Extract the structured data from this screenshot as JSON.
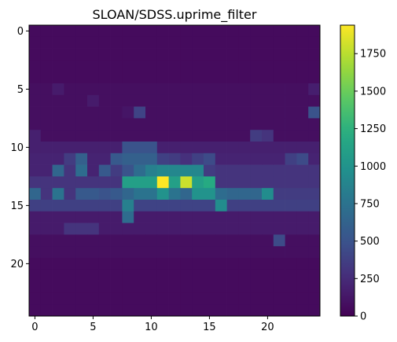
{
  "chart_data": {
    "type": "heatmap",
    "title": "SLOAN/SDSS.uprime_filter",
    "colormap": "viridis",
    "vmin": 0,
    "vmax": 1940,
    "rows": 25,
    "cols": 25,
    "x_ticks": [
      "0",
      "5",
      "10",
      "15",
      "20"
    ],
    "y_ticks": [
      "0",
      "5",
      "10",
      "15",
      "20"
    ],
    "colorbar_ticks": [
      "0",
      "250",
      "500",
      "750",
      "1000",
      "1250",
      "1500",
      "1750"
    ],
    "values": [
      [
        60,
        60,
        60,
        60,
        60,
        60,
        60,
        60,
        60,
        60,
        60,
        60,
        60,
        60,
        60,
        60,
        60,
        60,
        60,
        60,
        60,
        60,
        60,
        60,
        60
      ],
      [
        60,
        60,
        60,
        60,
        60,
        60,
        60,
        60,
        60,
        60,
        60,
        60,
        60,
        60,
        60,
        60,
        60,
        60,
        60,
        60,
        60,
        60,
        60,
        60,
        60
      ],
      [
        60,
        60,
        60,
        60,
        60,
        60,
        60,
        60,
        60,
        60,
        60,
        60,
        60,
        60,
        60,
        60,
        60,
        60,
        60,
        60,
        60,
        60,
        60,
        60,
        60
      ],
      [
        60,
        60,
        60,
        60,
        60,
        60,
        60,
        60,
        60,
        60,
        60,
        60,
        60,
        60,
        60,
        60,
        60,
        60,
        60,
        60,
        60,
        60,
        60,
        60,
        60
      ],
      [
        60,
        60,
        60,
        60,
        60,
        60,
        60,
        60,
        60,
        60,
        60,
        60,
        60,
        60,
        60,
        60,
        60,
        60,
        60,
        60,
        60,
        60,
        60,
        60,
        60
      ],
      [
        80,
        80,
        150,
        80,
        80,
        80,
        80,
        80,
        80,
        80,
        80,
        80,
        80,
        80,
        80,
        80,
        80,
        80,
        80,
        80,
        80,
        80,
        80,
        80,
        170
      ],
      [
        80,
        80,
        80,
        80,
        80,
        150,
        80,
        80,
        80,
        80,
        80,
        80,
        80,
        80,
        80,
        80,
        80,
        80,
        80,
        80,
        80,
        80,
        80,
        80,
        80
      ],
      [
        80,
        80,
        80,
        80,
        80,
        80,
        80,
        80,
        120,
        400,
        80,
        80,
        80,
        80,
        80,
        80,
        80,
        80,
        80,
        80,
        80,
        80,
        80,
        80,
        500
      ],
      [
        80,
        80,
        80,
        80,
        80,
        80,
        80,
        80,
        80,
        80,
        80,
        80,
        80,
        80,
        80,
        80,
        80,
        80,
        80,
        80,
        80,
        80,
        80,
        80,
        80
      ],
      [
        180,
        80,
        80,
        80,
        80,
        80,
        80,
        80,
        80,
        80,
        80,
        80,
        80,
        80,
        80,
        80,
        80,
        80,
        80,
        350,
        300,
        80,
        80,
        80,
        80
      ],
      [
        180,
        180,
        180,
        180,
        180,
        180,
        180,
        180,
        500,
        500,
        500,
        180,
        180,
        180,
        180,
        180,
        180,
        180,
        180,
        180,
        180,
        180,
        180,
        180,
        180
      ],
      [
        200,
        200,
        200,
        350,
        600,
        200,
        200,
        550,
        600,
        600,
        600,
        380,
        350,
        280,
        380,
        450,
        200,
        200,
        200,
        200,
        200,
        200,
        380,
        450,
        200
      ],
      [
        200,
        200,
        650,
        300,
        700,
        200,
        550,
        350,
        500,
        700,
        850,
        900,
        900,
        900,
        900,
        350,
        300,
        300,
        300,
        300,
        300,
        300,
        300,
        300,
        300
      ],
      [
        300,
        300,
        300,
        300,
        300,
        300,
        300,
        300,
        1100,
        1100,
        1100,
        1940,
        1100,
        1800,
        1100,
        1200,
        300,
        300,
        300,
        300,
        300,
        300,
        300,
        300,
        300
      ],
      [
        650,
        300,
        750,
        300,
        550,
        550,
        500,
        550,
        650,
        750,
        750,
        1000,
        750,
        650,
        1000,
        1000,
        700,
        650,
        650,
        650,
        950,
        350,
        350,
        350,
        350
      ],
      [
        380,
        380,
        380,
        380,
        380,
        380,
        380,
        380,
        850,
        400,
        400,
        400,
        400,
        400,
        400,
        400,
        950,
        380,
        380,
        380,
        380,
        380,
        380,
        380,
        380
      ],
      [
        150,
        150,
        150,
        150,
        150,
        150,
        150,
        150,
        700,
        150,
        150,
        150,
        150,
        150,
        150,
        150,
        150,
        150,
        150,
        150,
        150,
        150,
        150,
        150,
        150
      ],
      [
        150,
        150,
        150,
        300,
        300,
        300,
        150,
        150,
        150,
        150,
        150,
        150,
        150,
        150,
        150,
        150,
        150,
        150,
        150,
        150,
        150,
        150,
        150,
        150,
        150
      ],
      [
        80,
        80,
        80,
        80,
        80,
        80,
        80,
        80,
        80,
        80,
        80,
        80,
        80,
        80,
        80,
        80,
        80,
        80,
        80,
        80,
        80,
        450,
        80,
        80,
        80
      ],
      [
        80,
        80,
        80,
        80,
        80,
        80,
        80,
        80,
        80,
        80,
        80,
        80,
        80,
        80,
        80,
        80,
        80,
        80,
        80,
        80,
        80,
        80,
        80,
        80,
        80
      ],
      [
        60,
        60,
        60,
        60,
        60,
        60,
        60,
        60,
        60,
        60,
        60,
        60,
        60,
        60,
        60,
        60,
        60,
        60,
        60,
        60,
        60,
        60,
        60,
        60,
        60
      ],
      [
        60,
        60,
        60,
        60,
        60,
        60,
        60,
        60,
        60,
        60,
        60,
        60,
        60,
        60,
        60,
        60,
        60,
        60,
        60,
        60,
        60,
        60,
        60,
        60,
        60
      ],
      [
        60,
        60,
        60,
        60,
        60,
        60,
        60,
        60,
        60,
        60,
        60,
        60,
        60,
        60,
        60,
        60,
        60,
        60,
        60,
        60,
        60,
        60,
        60,
        60,
        60
      ],
      [
        60,
        60,
        60,
        60,
        60,
        60,
        60,
        60,
        60,
        60,
        60,
        60,
        60,
        60,
        60,
        60,
        60,
        60,
        60,
        60,
        60,
        60,
        60,
        60,
        60
      ],
      [
        60,
        60,
        60,
        60,
        60,
        60,
        60,
        60,
        60,
        60,
        60,
        60,
        60,
        60,
        60,
        60,
        60,
        60,
        60,
        60,
        60,
        60,
        60,
        60,
        60
      ]
    ]
  }
}
